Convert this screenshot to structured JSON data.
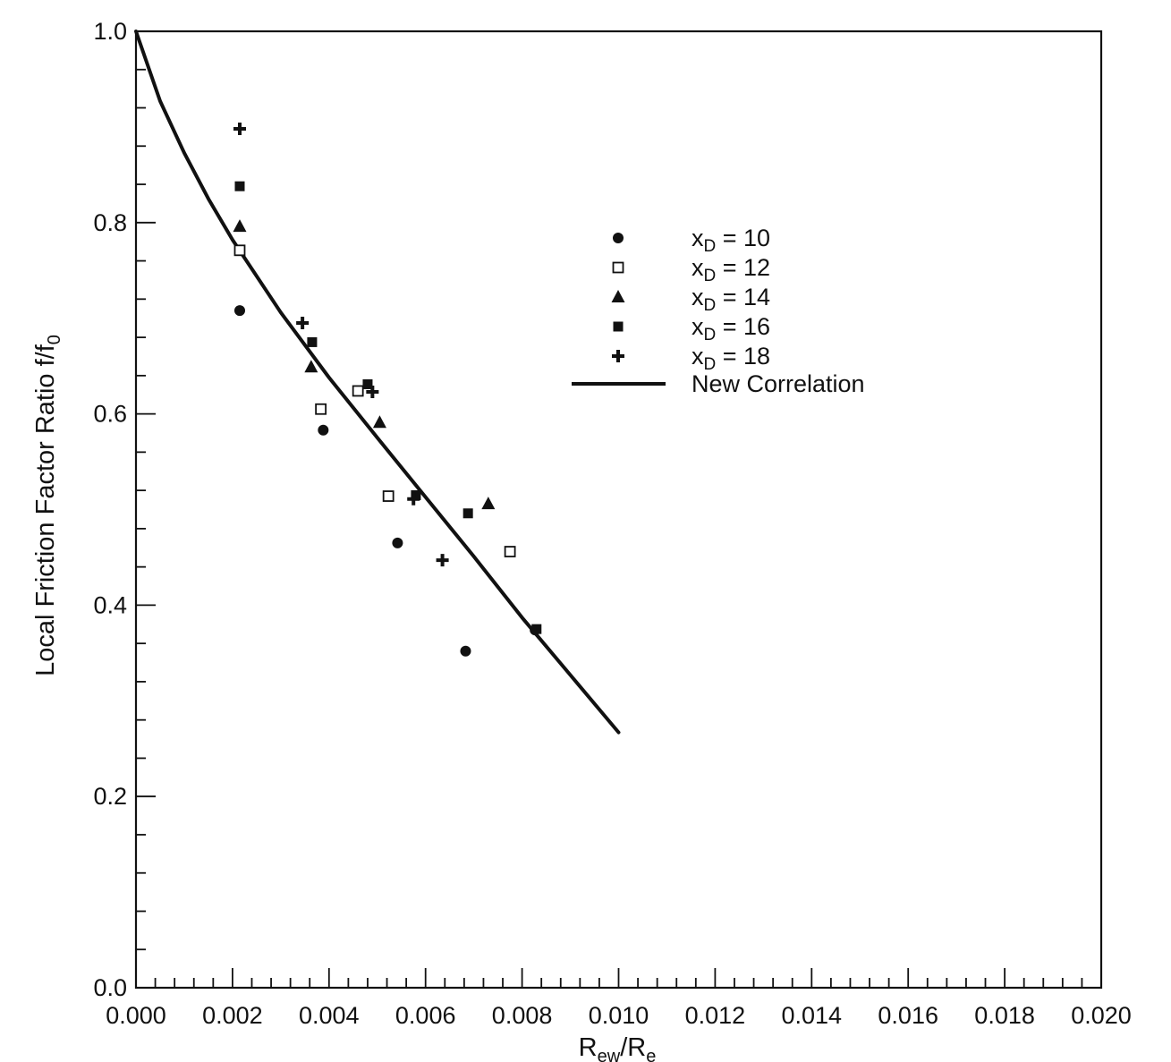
{
  "chart_data": {
    "type": "scatter",
    "title": "",
    "xlabel": "R",
    "xlabel_sub1": "ew",
    "xlabel_mid": "/R",
    "xlabel_sub2": "e",
    "ylabel": "Local Friction Factor Ratio f/f",
    "ylabel_sub": "0",
    "xlim": [
      0.0,
      0.02
    ],
    "ylim": [
      0.0,
      1.0
    ],
    "x_ticks": [
      "0.000",
      "0.002",
      "0.004",
      "0.006",
      "0.008",
      "0.010",
      "0.012",
      "0.014",
      "0.016",
      "0.018",
      "0.020"
    ],
    "y_ticks": [
      "0.0",
      "0.2",
      "0.4",
      "0.6",
      "0.8",
      "1.0"
    ],
    "grid": false,
    "legend_position": "upper-center",
    "series": [
      {
        "name": "x",
        "sub": "D",
        "suffix": " = 10",
        "marker": "circle",
        "points": [
          [
            0.00215,
            0.708
          ],
          [
            0.00388,
            0.583
          ],
          [
            0.00542,
            0.465
          ],
          [
            0.00683,
            0.352
          ],
          [
            0.00827,
            0.374
          ]
        ]
      },
      {
        "name": "x",
        "sub": "D",
        "suffix": " = 12",
        "marker": "open-square",
        "points": [
          [
            0.00215,
            0.771
          ],
          [
            0.00383,
            0.605
          ],
          [
            0.0046,
            0.624
          ],
          [
            0.00523,
            0.514
          ],
          [
            0.00775,
            0.456
          ]
        ]
      },
      {
        "name": "x",
        "sub": "D",
        "suffix": " = 14",
        "marker": "triangle",
        "points": [
          [
            0.00215,
            0.796
          ],
          [
            0.00363,
            0.649
          ],
          [
            0.00505,
            0.591
          ],
          [
            0.0073,
            0.506
          ]
        ]
      },
      {
        "name": "x",
        "sub": "D",
        "suffix": " = 16",
        "marker": "filled-square",
        "points": [
          [
            0.00215,
            0.838
          ],
          [
            0.00365,
            0.675
          ],
          [
            0.0048,
            0.631
          ],
          [
            0.0058,
            0.515
          ],
          [
            0.00688,
            0.496
          ],
          [
            0.0083,
            0.375
          ]
        ]
      },
      {
        "name": "x",
        "sub": "D",
        "suffix": " = 18",
        "marker": "plus",
        "points": [
          [
            0.00215,
            0.898
          ],
          [
            0.00345,
            0.695
          ],
          [
            0.0049,
            0.623
          ],
          [
            0.00575,
            0.511
          ],
          [
            0.00635,
            0.447
          ]
        ]
      }
    ],
    "curve": {
      "name": "New Correlation",
      "points": [
        [
          0.0,
          1.0
        ],
        [
          0.0005,
          0.927
        ],
        [
          0.001,
          0.873
        ],
        [
          0.0015,
          0.825
        ],
        [
          0.002,
          0.782
        ],
        [
          0.003,
          0.706
        ],
        [
          0.004,
          0.638
        ],
        [
          0.005,
          0.575
        ],
        [
          0.006,
          0.513
        ],
        [
          0.007,
          0.451
        ],
        [
          0.008,
          0.387
        ],
        [
          0.009,
          0.327
        ],
        [
          0.01,
          0.267
        ]
      ]
    }
  }
}
